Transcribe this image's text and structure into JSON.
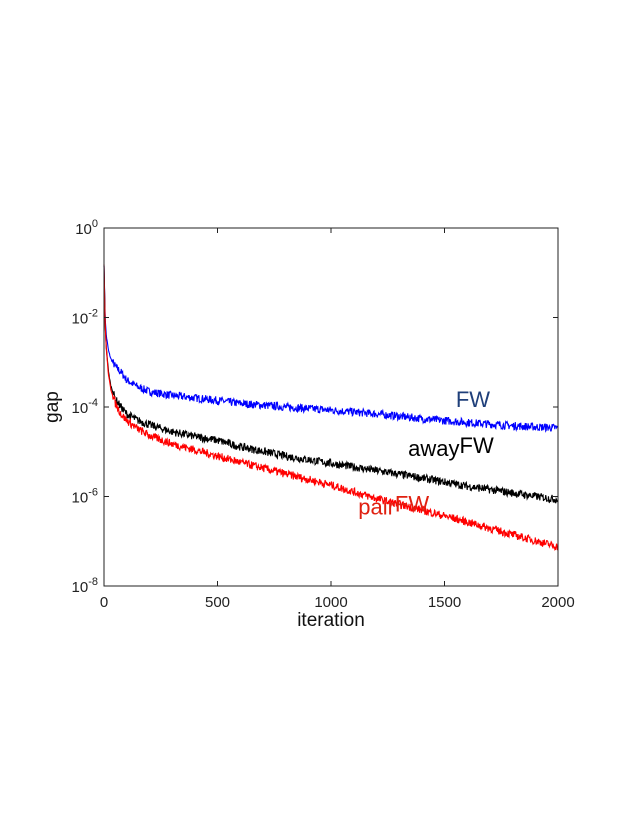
{
  "chart_data": {
    "type": "line",
    "xlabel": "iteration",
    "ylabel": "gap",
    "xlim": [
      0,
      2000
    ],
    "ylim": [
      1e-08,
      1
    ],
    "yscale": "log",
    "xticks": [
      0,
      500,
      1000,
      1500,
      2000
    ],
    "xtick_labels": [
      "0",
      "500",
      "1000",
      "1500",
      "2000"
    ],
    "yticks": [
      1e-08,
      1e-06,
      0.0001,
      0.01,
      1
    ],
    "ytick_labels": [
      {
        "base": "10",
        "exp": "-8"
      },
      {
        "base": "10",
        "exp": "-6"
      },
      {
        "base": "10",
        "exp": "-4"
      },
      {
        "base": "10",
        "exp": "-2"
      },
      {
        "base": "10",
        "exp": "0"
      }
    ],
    "grid": false,
    "legend": "inline labels",
    "series": [
      {
        "name": "FW",
        "label_parts": [
          "FW"
        ],
        "label_color": "#1f3f7a",
        "color": "#0000ff",
        "x": [
          0,
          5,
          10,
          20,
          30,
          50,
          75,
          100,
          150,
          200,
          300,
          400,
          500,
          600,
          800,
          1000,
          1200,
          1400,
          1600,
          1800,
          2000
        ],
        "y": [
          0.15,
          0.01,
          0.004,
          0.0018,
          0.0012,
          0.0008,
          0.0006,
          0.0004,
          0.00028,
          0.00022,
          0.00018,
          0.00016,
          0.00014,
          0.00012,
          0.0001,
          8.5e-05,
          7e-05,
          5.5e-05,
          4.5e-05,
          3.8e-05,
          3.4e-05
        ]
      },
      {
        "name": "awayFW",
        "label_parts": [
          "away",
          "FW"
        ],
        "label_color": "#000000",
        "color": "#000000",
        "x": [
          0,
          5,
          10,
          20,
          30,
          50,
          75,
          100,
          150,
          200,
          300,
          400,
          500,
          600,
          800,
          1000,
          1200,
          1400,
          1600,
          1800,
          2000
        ],
        "y": [
          0.15,
          0.008,
          0.0022,
          0.0006,
          0.0003,
          0.00015,
          0.0001,
          7e-05,
          5e-05,
          4e-05,
          2.8e-05,
          2.2e-05,
          1.8e-05,
          1.3e-05,
          8e-06,
          5.5e-06,
          3.8e-06,
          2.6e-06,
          1.7e-06,
          1.2e-06,
          8.5e-07
        ]
      },
      {
        "name": "pairFW",
        "label_parts": [
          "pair",
          "FW"
        ],
        "label_color": "#e02010",
        "color": "#ff0000",
        "x": [
          0,
          5,
          10,
          20,
          30,
          50,
          75,
          100,
          150,
          200,
          300,
          400,
          500,
          600,
          800,
          1000,
          1200,
          1400,
          1600,
          1800,
          2000
        ],
        "y": [
          0.15,
          0.007,
          0.002,
          0.0005,
          0.00025,
          0.00012,
          7e-05,
          5e-05,
          3.2e-05,
          2.3e-05,
          1.5e-05,
          1.1e-05,
          8e-06,
          5.8e-06,
          3.2e-06,
          1.8e-06,
          9e-07,
          5e-07,
          2.7e-07,
          1.4e-07,
          7.5e-08
        ]
      }
    ],
    "annotations": [
      {
        "series": "FW",
        "x": 1550,
        "y": 0.0001
      },
      {
        "series": "awayFW",
        "x": 1340,
        "y": 8e-06
      },
      {
        "series": "pairFW",
        "x": 1120,
        "y": 4e-07
      }
    ]
  }
}
